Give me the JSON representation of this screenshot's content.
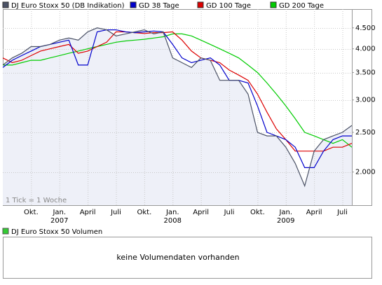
{
  "chart_data": {
    "type": "line",
    "log_y": true,
    "grid": true,
    "note": "1 Tick = 1 Woche",
    "x": [
      "2006-07",
      "2006-08",
      "2006-09",
      "2006-10",
      "2006-11",
      "2006-12",
      "2007-01",
      "2007-02",
      "2007-03",
      "2007-04",
      "2007-05",
      "2007-06",
      "2007-07",
      "2007-08",
      "2007-09",
      "2007-10",
      "2007-11",
      "2007-12",
      "2008-01",
      "2008-02",
      "2008-03",
      "2008-04",
      "2008-05",
      "2008-06",
      "2008-07",
      "2008-08",
      "2008-09",
      "2008-10",
      "2008-11",
      "2008-12",
      "2009-01",
      "2009-02",
      "2009-03",
      "2009-04",
      "2009-05",
      "2009-06",
      "2009-07",
      "2009-08"
    ],
    "xlim": [
      "2006-07",
      "2009-08"
    ],
    "xticks": [
      {
        "value": "2006-10",
        "label": "Okt."
      },
      {
        "value": "2007-01",
        "label": "Jan."
      },
      {
        "value": "2007-04",
        "label": "April"
      },
      {
        "value": "2007-07",
        "label": "Juli"
      },
      {
        "value": "2007-10",
        "label": "Okt."
      },
      {
        "value": "2008-01",
        "label": "Jan."
      },
      {
        "value": "2008-04",
        "label": "April"
      },
      {
        "value": "2008-07",
        "label": "Juli"
      },
      {
        "value": "2008-10",
        "label": "Okt."
      },
      {
        "value": "2009-01",
        "label": "Jan."
      },
      {
        "value": "2009-04",
        "label": "April"
      },
      {
        "value": "2009-07",
        "label": "Juli"
      }
    ],
    "xtick_years": [
      {
        "value": "2007-01",
        "label": "2007"
      },
      {
        "value": "2008-01",
        "label": "2008"
      },
      {
        "value": "2009-01",
        "label": "2009"
      }
    ],
    "ylim": [
      1660,
      5000
    ],
    "yticks": [
      {
        "value": 2000,
        "label": "2.000"
      },
      {
        "value": 2500,
        "label": "2.500"
      },
      {
        "value": 3000,
        "label": "3.000"
      },
      {
        "value": 3500,
        "label": "3.500"
      },
      {
        "value": 4000,
        "label": "4.000"
      },
      {
        "value": 4500,
        "label": "4.500"
      }
    ],
    "series": [
      {
        "name": "DJ Euro Stoxx 50 (DB Indikation)",
        "color": "#4b5266",
        "values": [
          3650,
          3800,
          3900,
          4050,
          4050,
          4100,
          4200,
          4250,
          4200,
          4400,
          4500,
          4450,
          4300,
          4350,
          4400,
          4450,
          4350,
          4400,
          3800,
          3700,
          3600,
          3800,
          3750,
          3350,
          3350,
          3350,
          3100,
          2500,
          2450,
          2450,
          2300,
          2100,
          1850,
          2250,
          2400,
          2450,
          2500,
          2600
        ]
      },
      {
        "name": "GD 38 Tage",
        "color": "#0000cc",
        "values": [
          3600,
          3750,
          3850,
          3950,
          4050,
          4100,
          4150,
          4200,
          3650,
          3650,
          4400,
          4450,
          4450,
          4400,
          4380,
          4400,
          4420,
          4400,
          4100,
          3800,
          3700,
          3750,
          3800,
          3650,
          3350,
          3350,
          3300,
          2900,
          2500,
          2450,
          2400,
          2300,
          2050,
          2050,
          2250,
          2400,
          2450,
          2450
        ]
      },
      {
        "name": "GD 100 Tage",
        "color": "#dd0000",
        "values": [
          3800,
          3700,
          3750,
          3850,
          3950,
          4000,
          4050,
          4100,
          3900,
          3950,
          4050,
          4150,
          4400,
          4400,
          4380,
          4360,
          4380,
          4380,
          4400,
          4200,
          3950,
          3800,
          3750,
          3700,
          3550,
          3450,
          3350,
          3100,
          2800,
          2550,
          2400,
          2250,
          2250,
          2250,
          2250,
          2300,
          2300,
          2350
        ]
      },
      {
        "name": "GD 200 Tage",
        "color": "#00cc00",
        "values": [
          3650,
          3650,
          3700,
          3750,
          3750,
          3800,
          3850,
          3900,
          3950,
          4000,
          4050,
          4100,
          4150,
          4180,
          4200,
          4220,
          4250,
          4280,
          4350,
          4350,
          4300,
          4200,
          4100,
          4000,
          3900,
          3800,
          3650,
          3500,
          3300,
          3100,
          2900,
          2700,
          2500,
          2450,
          2400,
          2350,
          2400,
          2300
        ]
      }
    ],
    "volume_panel": {
      "legend": "DJ Euro Stoxx 50 Volumen",
      "legend_color": "#33cc33",
      "message": "keine Volumendaten vorhanden"
    }
  }
}
